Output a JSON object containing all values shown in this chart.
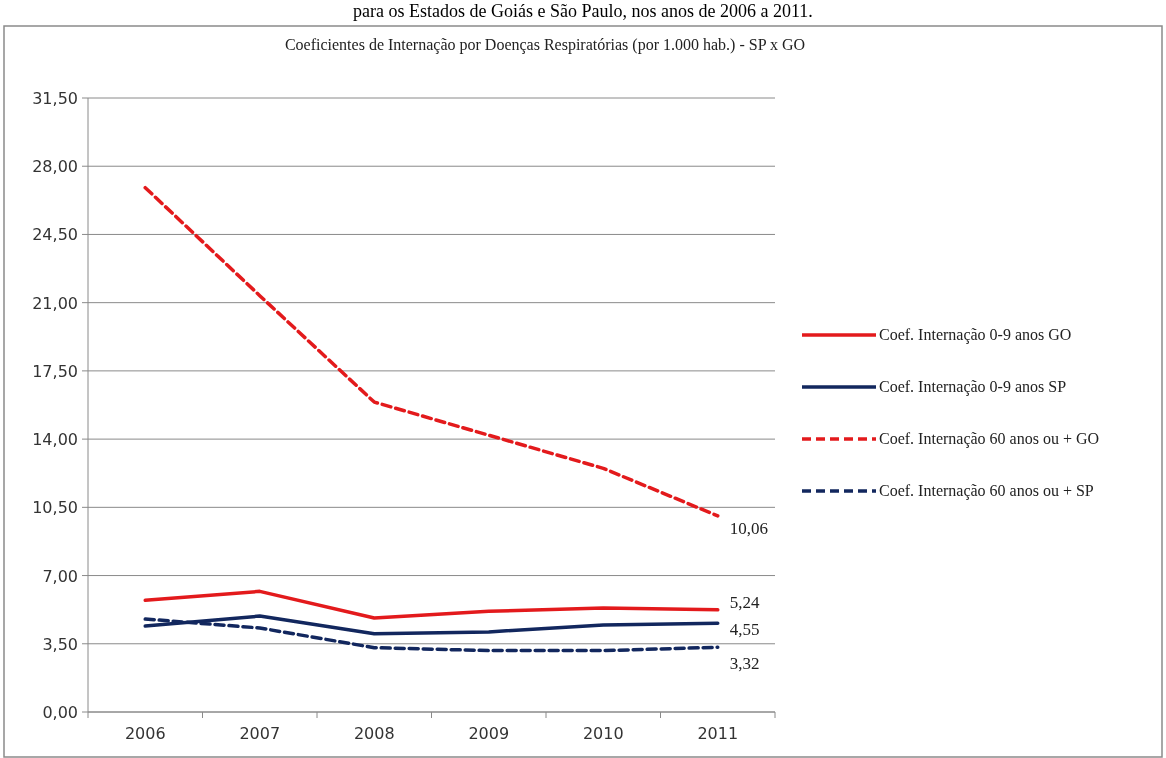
{
  "chart_data": {
    "type": "line",
    "title": "Coeficientes de Internação por Doenças Respiratórias (por 1.000 hab.) - SP x GO",
    "annotations": [
      "para os Estados de Goiás e São Paulo, nos anos de 2006 a 2011."
    ],
    "categories": [
      "2006",
      "2007",
      "2008",
      "2009",
      "2010",
      "2011"
    ],
    "series": [
      {
        "name": "Coef. Internação 0-9 anos GO",
        "color": "#e31a1c",
        "line_style": "solid",
        "values": [
          5.73,
          6.19,
          4.82,
          5.17,
          5.33,
          5.24
        ],
        "value_labels": [
          null,
          null,
          null,
          null,
          null,
          "5,24"
        ]
      },
      {
        "name": "Coef. Internação 0-9 anos SP",
        "color": "#12275e",
        "line_style": "solid",
        "values": [
          4.41,
          4.92,
          4.01,
          4.11,
          4.46,
          4.55
        ],
        "value_labels": [
          null,
          null,
          null,
          null,
          null,
          "4,55"
        ]
      },
      {
        "name": "Coef. Internação 60 anos ou + GO",
        "color": "#e31a1c",
        "line_style": "dashed",
        "values": [
          26.9,
          21.36,
          15.9,
          14.2,
          12.5,
          10.06
        ],
        "value_labels": [
          null,
          null,
          null,
          null,
          null,
          "10,06"
        ]
      },
      {
        "name": "Coef. Internação 60 anos ou + SP",
        "color": "#12275e",
        "line_style": "dashed",
        "values": [
          4.77,
          4.31,
          3.3,
          3.15,
          3.15,
          3.32
        ],
        "value_labels": [
          null,
          null,
          null,
          null,
          null,
          "3,32"
        ]
      }
    ],
    "ylim": [
      0,
      31.5
    ],
    "yticks": [
      {
        "value": 0,
        "label": "0,00"
      },
      {
        "value": 3.5,
        "label": "3,50"
      },
      {
        "value": 7,
        "label": "7,00"
      },
      {
        "value": 10.5,
        "label": "10,50"
      },
      {
        "value": 14,
        "label": "14,00"
      },
      {
        "value": 17.5,
        "label": "17,50"
      },
      {
        "value": 21,
        "label": "21,00"
      },
      {
        "value": 24.5,
        "label": "24,50"
      },
      {
        "value": 28,
        "label": "28,00"
      },
      {
        "value": 31.5,
        "label": "31,50"
      }
    ],
    "grid": "y",
    "legend": "right",
    "marker": "none"
  }
}
